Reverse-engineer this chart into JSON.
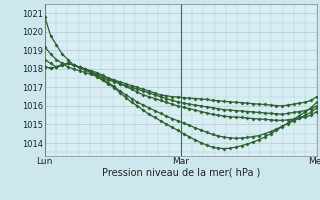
{
  "xlabel": "Pression niveau de la mer( hPa )",
  "bg_color": "#cce8ee",
  "plot_bg_color": "#d8eef4",
  "grid_color": "#b0cccc",
  "line_color": "#2d6030",
  "marker_color": "#2d6030",
  "vline_color": "#446644",
  "yticks": [
    1014,
    1015,
    1016,
    1017,
    1018,
    1019,
    1020,
    1021
  ],
  "ylim": [
    1013.3,
    1021.5
  ],
  "xlim": [
    0,
    48
  ],
  "xtick_positions": [
    0,
    24,
    48
  ],
  "xtick_labels": [
    "Lun",
    "Mar",
    "Mer"
  ],
  "series": [
    [
      1020.8,
      1019.8,
      1019.3,
      1018.8,
      1018.5,
      1018.2,
      1018.05,
      1017.95,
      1017.85,
      1017.7,
      1017.6,
      1017.5,
      1017.4,
      1017.3,
      1017.2,
      1017.1,
      1017.0,
      1016.9,
      1016.8,
      1016.7,
      1016.6,
      1016.55,
      1016.5,
      1016.48,
      1016.45,
      1016.42,
      1016.4,
      1016.38,
      1016.35,
      1016.3,
      1016.28,
      1016.25,
      1016.22,
      1016.2,
      1016.18,
      1016.15,
      1016.12,
      1016.1,
      1016.08,
      1016.05,
      1016.02,
      1016.0,
      1016.05,
      1016.1,
      1016.15,
      1016.2,
      1016.3,
      1016.5
    ],
    [
      1019.2,
      1018.8,
      1018.5,
      1018.3,
      1018.1,
      1018.0,
      1017.9,
      1017.8,
      1017.7,
      1017.6,
      1017.5,
      1017.4,
      1017.3,
      1017.2,
      1017.1,
      1017.0,
      1016.9,
      1016.8,
      1016.7,
      1016.6,
      1016.5,
      1016.4,
      1016.3,
      1016.22,
      1016.15,
      1016.1,
      1016.05,
      1016.0,
      1015.95,
      1015.9,
      1015.85,
      1015.8,
      1015.78,
      1015.75,
      1015.73,
      1015.7,
      1015.68,
      1015.65,
      1015.62,
      1015.6,
      1015.58,
      1015.55,
      1015.6,
      1015.65,
      1015.7,
      1015.75,
      1015.85,
      1016.0
    ],
    [
      1018.5,
      1018.3,
      1018.1,
      1018.2,
      1018.3,
      1018.2,
      1018.1,
      1018.0,
      1017.9,
      1017.8,
      1017.65,
      1017.5,
      1017.35,
      1017.2,
      1017.05,
      1016.9,
      1016.75,
      1016.6,
      1016.5,
      1016.4,
      1016.3,
      1016.2,
      1016.1,
      1016.0,
      1015.92,
      1015.85,
      1015.78,
      1015.7,
      1015.62,
      1015.55,
      1015.5,
      1015.45,
      1015.42,
      1015.4,
      1015.38,
      1015.35,
      1015.32,
      1015.3,
      1015.28,
      1015.25,
      1015.23,
      1015.22,
      1015.25,
      1015.3,
      1015.35,
      1015.4,
      1015.5,
      1015.7
    ],
    [
      1018.1,
      1018.05,
      1018.1,
      1018.2,
      1018.3,
      1018.2,
      1018.1,
      1018.0,
      1017.85,
      1017.65,
      1017.45,
      1017.25,
      1017.05,
      1016.8,
      1016.6,
      1016.4,
      1016.2,
      1016.05,
      1015.9,
      1015.75,
      1015.6,
      1015.45,
      1015.32,
      1015.2,
      1015.08,
      1014.95,
      1014.82,
      1014.7,
      1014.58,
      1014.46,
      1014.38,
      1014.32,
      1014.28,
      1014.26,
      1014.27,
      1014.3,
      1014.35,
      1014.4,
      1014.5,
      1014.62,
      1014.75,
      1014.9,
      1015.05,
      1015.2,
      1015.35,
      1015.5,
      1015.65,
      1015.9
    ],
    [
      1018.1,
      1018.05,
      1018.1,
      1018.25,
      1018.3,
      1018.2,
      1018.08,
      1017.95,
      1017.78,
      1017.58,
      1017.38,
      1017.18,
      1016.98,
      1016.7,
      1016.45,
      1016.2,
      1016.0,
      1015.78,
      1015.55,
      1015.38,
      1015.2,
      1015.02,
      1014.85,
      1014.68,
      1014.5,
      1014.33,
      1014.17,
      1014.02,
      1013.88,
      1013.78,
      1013.72,
      1013.7,
      1013.72,
      1013.78,
      1013.86,
      1013.95,
      1014.05,
      1014.18,
      1014.32,
      1014.5,
      1014.68,
      1014.88,
      1015.08,
      1015.28,
      1015.48,
      1015.68,
      1015.9,
      1016.2
    ]
  ]
}
